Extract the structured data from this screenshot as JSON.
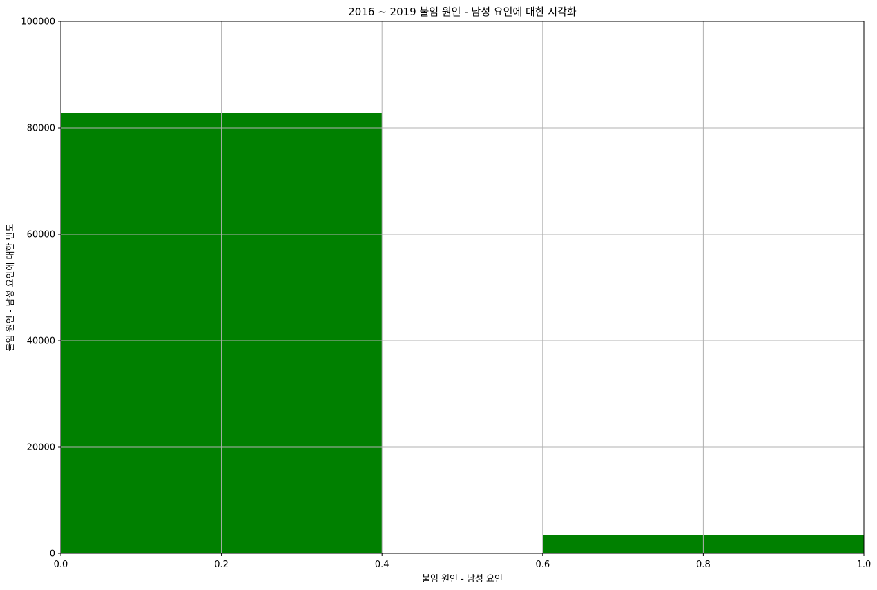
{
  "chart_data": {
    "type": "bar",
    "title": "2016 ~ 2019 불임 원인 - 남성 요인에 대한 시각화",
    "xlabel": "불임 원인 - 남성 요인",
    "ylabel": "불임 원인 - 남성 요인에 대한 빈도",
    "xlim": [
      0,
      1
    ],
    "ylim": [
      0,
      100000
    ],
    "xticks": [
      "0.0",
      "0.2",
      "0.4",
      "0.6",
      "0.8",
      "1.0"
    ],
    "yticks": [
      "0",
      "20000",
      "40000",
      "60000",
      "80000",
      "100000"
    ],
    "xtick_values": [
      0,
      0.2,
      0.4,
      0.6,
      0.8,
      1.0
    ],
    "ytick_values": [
      0,
      20000,
      40000,
      60000,
      80000,
      100000
    ],
    "bins": [
      {
        "x0": 0.0,
        "x1": 0.4,
        "value": 82800
      },
      {
        "x0": 0.4,
        "x1": 0.6,
        "value": 0
      },
      {
        "x0": 0.6,
        "x1": 1.0,
        "value": 3500
      }
    ],
    "grid": true,
    "bar_color": "#008000",
    "grid_color": "#b0b0b0"
  }
}
